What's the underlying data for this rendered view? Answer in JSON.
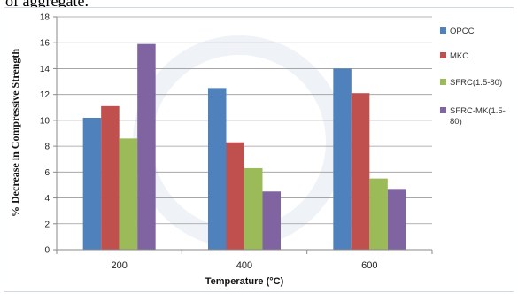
{
  "caption_fragment": "of aggregate.",
  "chart_data": {
    "type": "bar",
    "categories": [
      "200",
      "400",
      "600"
    ],
    "series": [
      {
        "name": "OPCC",
        "color": "#4f81bd",
        "values": [
          10.2,
          12.5,
          14.0
        ]
      },
      {
        "name": "MKC",
        "color": "#c0504d",
        "values": [
          11.1,
          8.3,
          12.1
        ]
      },
      {
        "name": "SFRC(1.5-80)",
        "color": "#9bbb59",
        "values": [
          8.6,
          6.3,
          5.5
        ]
      },
      {
        "name": "SFRC-MK(1.5-80)",
        "color": "#8064a2",
        "values": [
          15.9,
          4.5,
          4.7
        ]
      }
    ],
    "ylim": [
      0,
      18
    ],
    "yticks": [
      "0",
      "2",
      "4",
      "6",
      "8",
      "10",
      "12",
      "14",
      "16",
      "18"
    ],
    "xlabel": "Temperature (°C)",
    "ylabel": "% Decrease in Compressive Strength",
    "grid": true,
    "legend_position": "right"
  }
}
